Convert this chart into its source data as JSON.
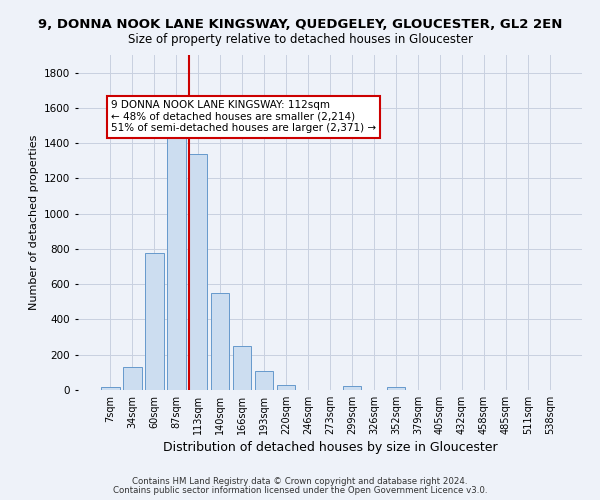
{
  "title": "9, DONNA NOOK LANE KINGSWAY, QUEDGELEY, GLOUCESTER, GL2 2EN",
  "subtitle": "Size of property relative to detached houses in Gloucester",
  "xlabel": "Distribution of detached houses by size in Gloucester",
  "ylabel": "Number of detached properties",
  "bar_labels": [
    "7sqm",
    "34sqm",
    "60sqm",
    "87sqm",
    "113sqm",
    "140sqm",
    "166sqm",
    "193sqm",
    "220sqm",
    "246sqm",
    "273sqm",
    "299sqm",
    "326sqm",
    "352sqm",
    "379sqm",
    "405sqm",
    "432sqm",
    "458sqm",
    "485sqm",
    "511sqm",
    "538sqm"
  ],
  "bar_values": [
    15,
    130,
    775,
    1435,
    1340,
    550,
    250,
    105,
    30,
    0,
    0,
    20,
    0,
    15,
    0,
    0,
    0,
    0,
    0,
    0,
    0
  ],
  "bar_color": "#ccddf0",
  "bar_edgecolor": "#6699cc",
  "vline_color": "#cc0000",
  "vline_bar_index": 4,
  "annotation_text": "9 DONNA NOOK LANE KINGSWAY: 112sqm\n← 48% of detached houses are smaller (2,214)\n51% of semi-detached houses are larger (2,371) →",
  "annotation_box_edgecolor": "#cc0000",
  "annotation_box_facecolor": "#ffffff",
  "ylim": [
    0,
    1900
  ],
  "yticks": [
    0,
    200,
    400,
    600,
    800,
    1000,
    1200,
    1400,
    1600,
    1800
  ],
  "footnote1": "Contains HM Land Registry data © Crown copyright and database right 2024.",
  "footnote2": "Contains public sector information licensed under the Open Government Licence v3.0.",
  "background_color": "#eef2f9",
  "grid_color": "#c8d0e0",
  "title_fontsize": 9.5,
  "subtitle_fontsize": 8.5,
  "xlabel_fontsize": 9,
  "ylabel_fontsize": 8,
  "tick_fontsize": 7,
  "ytick_fontsize": 7.5,
  "footnote_fontsize": 6.2,
  "annot_fontsize": 7.5
}
